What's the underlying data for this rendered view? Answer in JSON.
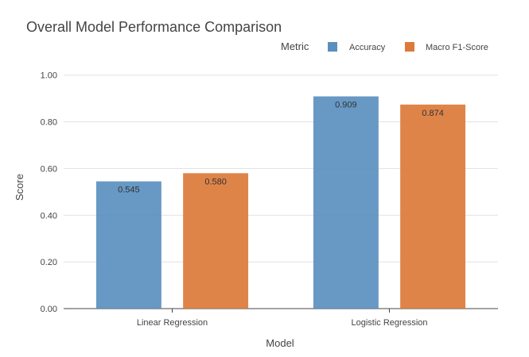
{
  "chart_data": {
    "type": "bar",
    "title": "Overall Model Performance Comparison",
    "xlabel": "Model",
    "ylabel": "Score",
    "categories": [
      "Linear Regression",
      "Logistic Regression"
    ],
    "series": [
      {
        "name": "Accuracy",
        "values": [
          0.545,
          0.909
        ],
        "labels": [
          "0.545",
          "0.909"
        ],
        "color": "#5b8fbf"
      },
      {
        "name": "Macro F1-Score",
        "values": [
          0.58,
          0.874
        ],
        "labels": [
          "0.580",
          "0.874"
        ],
        "color": "#dc7a3a"
      }
    ],
    "ylim": [
      0,
      1.05
    ],
    "yticks": [
      0,
      0.2,
      0.4,
      0.6,
      0.8,
      1.0
    ],
    "ytick_labels": [
      "0.00",
      "0.20",
      "0.40",
      "0.60",
      "0.80",
      "1.00"
    ],
    "legend_title": "Metric",
    "legend_position": "top-right",
    "grid": true
  }
}
